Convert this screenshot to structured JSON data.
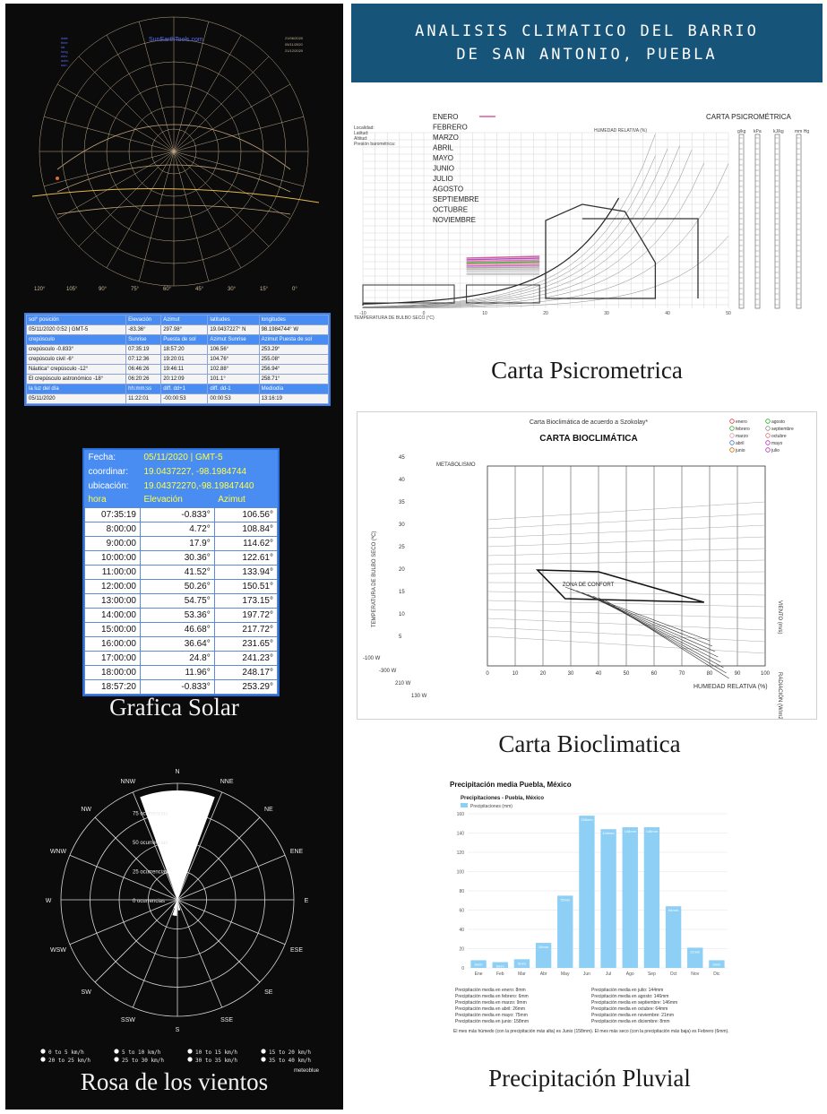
{
  "title_lines": [
    "ANALISIS CLIMATICO DEL BARRIO",
    "DE SAN ANTONIO, PUEBLA"
  ],
  "captions": {
    "solar": "Grafica Solar",
    "wind": "Rosa de los vientos",
    "psychro": "Carta Psicrometrica",
    "bioclimatic": "Carta Bioclimatica",
    "rain": "Precipitación Pluvial"
  },
  "sun_path": {
    "site": "SunEarthTools.com",
    "info_lines": [
      "date",
      "time",
      "lat",
      "long",
      "elev",
      "azim",
      "sun"
    ],
    "legend": [
      "21/06/2020",
      "05/11/2020",
      "21/12/2020"
    ],
    "degree_labels": [
      "120°",
      "105°",
      "90°",
      "75°",
      "60°",
      "45°",
      "30°",
      "15°",
      "0°"
    ]
  },
  "solar_table": {
    "rows": [
      [
        "sol° posición",
        "Elevación",
        "Azimut",
        "latitudes",
        "longitudes"
      ],
      [
        "05/11/2020 0:52 | GMT-5",
        "-83.36°",
        "297.98°",
        "19.0437227° N",
        "98.1984744° W"
      ],
      [
        "crepúsculo",
        "Sunrise",
        "Puesta de sol",
        "Azimut Sunrise",
        "Azimut Puesta de sol"
      ],
      [
        "crepúsculo -0.833°",
        "07:35:19",
        "18:57:20",
        "106.56°",
        "253.29°"
      ],
      [
        "crepúsculo civil -6°",
        "07:12:36",
        "19:20:01",
        "104.76°",
        "255.08°"
      ],
      [
        "Náutica° crepúsculo -12°",
        "06:46:26",
        "19:46:11",
        "102.88°",
        "256.94°"
      ],
      [
        "El crepúsculo astronómico -18°",
        "06:20:26",
        "20:12:09",
        "101.1°",
        "258.71°"
      ],
      [
        "la luz del día",
        "hh:mm:ss",
        "diff. dd+1",
        "diff. dd-1",
        "Mediodía"
      ],
      [
        "05/11/2020",
        "11:22:01",
        "-00:00:53",
        "00:00:53",
        "13:16:19"
      ]
    ]
  },
  "hour_table": {
    "fecha_label": "Fecha:",
    "fecha_value": "05/11/2020 | GMT-5",
    "coord_label": "coordinar:",
    "coord_value": "19.0437227, -98.1984744",
    "ubic_label": "ubicación:",
    "ubic_value": "19.04372270,-98.19847440",
    "headers": [
      "hora",
      "Elevación",
      "Azimut"
    ],
    "rows": [
      [
        "07:35:19",
        "-0.833°",
        "106.56°"
      ],
      [
        "8:00:00",
        "4.72°",
        "108.84°"
      ],
      [
        "9:00:00",
        "17.9°",
        "114.62°"
      ],
      [
        "10:00:00",
        "30.36°",
        "122.61°"
      ],
      [
        "11:00:00",
        "41.52°",
        "133.94°"
      ],
      [
        "12:00:00",
        "50.26°",
        "150.51°"
      ],
      [
        "13:00:00",
        "54.75°",
        "173.15°"
      ],
      [
        "14:00:00",
        "53.36°",
        "197.72°"
      ],
      [
        "15:00:00",
        "46.68°",
        "217.72°"
      ],
      [
        "16:00:00",
        "36.64°",
        "231.65°"
      ],
      [
        "17:00:00",
        "24.8°",
        "241.23°"
      ],
      [
        "18:00:00",
        "11.96°",
        "248.17°"
      ],
      [
        "18:57:20",
        "-0.833°",
        "253.29°"
      ]
    ]
  },
  "wind_rose": {
    "directions": [
      "N",
      "NNE",
      "NE",
      "ENE",
      "E",
      "ESE",
      "SE",
      "SSE",
      "S",
      "SSW",
      "SW",
      "WSW",
      "W",
      "WNW",
      "NW",
      "NNW"
    ],
    "ring_labels": [
      "75 ocurrencias",
      "50 ocurrencias",
      "25 ocurrencias",
      "0 ocurrencias"
    ],
    "legend": [
      "0 to 5 km/h",
      "5 to 10 km/h",
      "10 to 15 km/h",
      "15 to 20 km/h",
      "20 to 25 km/h",
      "25 to 30 km/h",
      "30 to 35 km/h",
      "35 to 40 km/h"
    ],
    "credit": "meteoblue"
  },
  "psychro": {
    "title": "CARTA PSICROMÉTRICA",
    "months": [
      "ENERO",
      "FEBRERO",
      "MARZO",
      "ABRIL",
      "MAYO",
      "JUNIO",
      "JULIO",
      "AGOSTO",
      "SEPTIEMBRE",
      "OCTUBRE",
      "NOVIEMBRE"
    ],
    "loc_lines": [
      "Localidad:",
      "Latitud:",
      "Altitud:",
      "Presión barométrica:"
    ],
    "rh_label": "HUMEDAD RELATIVA (%)",
    "x_label": "TEMPERATURA DE BULBO SECO (°C)",
    "x_ticks": [
      "-10",
      "0",
      "10",
      "20",
      "30",
      "40",
      "50"
    ],
    "scale_heads": [
      "g/kg",
      "kPa",
      "kJ/kg",
      "mm Hg"
    ]
  },
  "bioclimatic": {
    "header": "Carta Bioclimática de acuerdo a Szokolay*",
    "title": "CARTA BIOCLIMÁTICA",
    "legend": [
      "enero",
      "agosto",
      "febrero",
      "septiembre",
      "marzo",
      "octubre",
      "abril",
      "mayo",
      "junio",
      "julio"
    ],
    "legend_colors": [
      "#d33",
      "#2a2",
      "#3a3",
      "#888",
      "#d9a",
      "#c77",
      "#37c",
      "#a3a",
      "#c60",
      "#a3a"
    ],
    "y_label": "TEMPERATURA DE BULBO SECO (ºC)",
    "x_label": "HUMEDAD RELATIVA (%)",
    "metabolismo": "METABOLISMO",
    "comfort": "ZONA DE CONFORT",
    "right_labels": [
      "VIENTO (m/s)",
      "RADIACIÓN (W/m2)"
    ],
    "x_ticks": [
      "0",
      "10",
      "20",
      "30",
      "40",
      "50",
      "60",
      "70",
      "80",
      "90",
      "100"
    ],
    "y_ticks": [
      "45",
      "40",
      "35",
      "30",
      "25",
      "20",
      "15",
      "10",
      "5"
    ],
    "watts": [
      "-100 W",
      "-300 W",
      "210 W",
      "130 W"
    ]
  },
  "rain": {
    "title": "Precipitación media Puebla, México",
    "subtitle": "Precipitaciones - Puebla, México",
    "legend": "Precipitaciones (mm)",
    "stats_left": [
      "Precipitación media en enero: 8mm",
      "Precipitación media en febrero: 6mm",
      "Precipitación media en marzo: 9mm",
      "Precipitación media en abril: 26mm",
      "Precipitación media en mayo: 75mm",
      "Precipitación media en junio: 158mm"
    ],
    "stats_right": [
      "Precipitación media en julio: 144mm",
      "Precipitación media en agosto: 146mm",
      "Precipitación media en septiembre: 146mm",
      "Precipitación media en octubre: 64mm",
      "Precipitación media en noviembre: 21mm",
      "Precipitación media en diciembre: 8mm"
    ],
    "note": "El mes más húmedo (con la precipitación más alta) es Junio (158mm). El mes más seco (con la precipitación más baja) es Febrero (6mm).",
    "bar_color": "#8ecff5"
  },
  "chart_data": {
    "type": "bar",
    "title": "Precipitaciones - Puebla, México",
    "categories": [
      "Ene",
      "Feb",
      "Mar",
      "Abr",
      "May",
      "Jun",
      "Jul",
      "Ago",
      "Sep",
      "Oct",
      "Nov",
      "Dic"
    ],
    "series": [
      {
        "name": "Precipitaciones (mm)",
        "values": [
          8,
          6,
          9,
          26,
          75,
          158,
          144,
          146,
          146,
          64,
          21,
          8
        ]
      }
    ],
    "y_ticks": [
      "0",
      "20",
      "40",
      "60",
      "80",
      "100",
      "120",
      "140",
      "160"
    ],
    "ylim": [
      0,
      160
    ],
    "grid": true
  }
}
